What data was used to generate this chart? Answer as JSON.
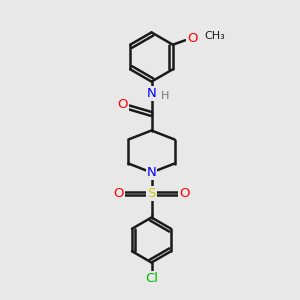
{
  "background_color": "#e8e8e8",
  "line_color": "#1a1a1a",
  "line_width": 1.8,
  "atom_colors": {
    "O": "#ff0000",
    "N": "#0000ff",
    "S": "#cccc00",
    "Cl": "#00bb00",
    "C": "#1a1a1a",
    "H": "#777777"
  },
  "font_size": 9.5,
  "font_size_small": 8.5
}
